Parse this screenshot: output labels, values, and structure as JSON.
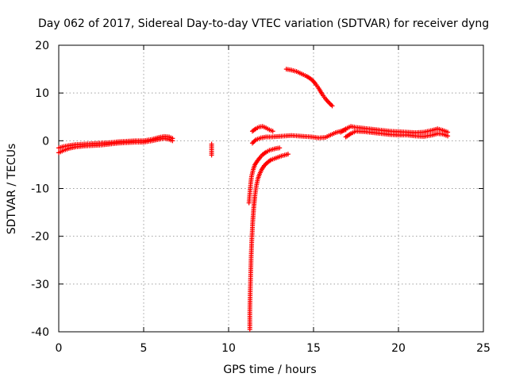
{
  "chart_data": {
    "type": "scatter",
    "title": "Day 062 of 2017, Sidereal Day-to-day VTEC variation (SDTVAR) for receiver dyng",
    "xlabel": "GPS time / hours",
    "ylabel": "SDTVAR / TECUs",
    "xlim": [
      0,
      25
    ],
    "ylim": [
      -40,
      20
    ],
    "xticks": [
      0,
      5,
      10,
      15,
      20,
      25
    ],
    "yticks": [
      -40,
      -30,
      -20,
      -10,
      0,
      10,
      20
    ],
    "grid": true,
    "marker": "+",
    "color": "#ff0000",
    "series": [
      {
        "name": "SDTVAR",
        "segments": [
          {
            "x": [
              0.0,
              0.3,
              0.6,
              1.0,
              1.5,
              2.0,
              2.5,
              3.0,
              3.5,
              4.0,
              4.5,
              5.0,
              5.5,
              5.9,
              6.2,
              6.5,
              6.7
            ],
            "y": [
              -2.5,
              -2.0,
              -1.6,
              -1.3,
              -1.1,
              -1.0,
              -0.9,
              -0.7,
              -0.5,
              -0.4,
              -0.3,
              -0.3,
              0.0,
              0.3,
              0.5,
              0.3,
              0.0
            ]
          },
          {
            "x": [
              0.0,
              0.3,
              0.6,
              1.0,
              1.5,
              2.0,
              2.5,
              3.0,
              3.5,
              4.0,
              4.5,
              5.0,
              5.5,
              5.9,
              6.2,
              6.5,
              6.7
            ],
            "y": [
              -1.5,
              -1.2,
              -1.0,
              -0.8,
              -0.7,
              -0.6,
              -0.5,
              -0.4,
              -0.2,
              -0.1,
              0.0,
              0.0,
              0.3,
              0.7,
              0.9,
              0.8,
              0.5
            ]
          },
          {
            "x": [
              9.0,
              9.0
            ],
            "y": [
              -0.7,
              -3.0
            ]
          },
          {
            "x": [
              11.25,
              11.25,
              11.27,
              11.3,
              11.33,
              11.37,
              11.42,
              11.48,
              11.55,
              11.63,
              11.72,
              11.82,
              11.95,
              12.1,
              12.3,
              12.5,
              12.8,
              13.1,
              13.5
            ],
            "y": [
              -39.5,
              -36.0,
              -32.0,
              -28.0,
              -24.0,
              -20.5,
              -17.0,
              -14.0,
              -11.5,
              -9.5,
              -8.0,
              -7.0,
              -6.0,
              -5.2,
              -4.5,
              -4.0,
              -3.6,
              -3.2,
              -2.8
            ]
          },
          {
            "x": [
              11.2,
              11.25,
              11.3,
              11.35,
              11.45,
              11.55,
              11.7,
              11.85,
              12.0,
              12.2,
              12.4,
              12.6,
              12.8,
              13.0
            ],
            "y": [
              -13.0,
              -11.0,
              -9.0,
              -7.5,
              -6.0,
              -5.0,
              -4.2,
              -3.5,
              -2.9,
              -2.4,
              -2.0,
              -1.8,
              -1.6,
              -1.5
            ]
          },
          {
            "x": [
              11.4,
              11.6,
              11.9,
              12.2,
              12.5,
              12.9,
              13.3,
              13.7,
              14.1,
              14.5,
              14.9,
              15.3,
              15.7,
              16.0,
              16.3,
              16.6,
              16.9
            ],
            "y": [
              -0.5,
              0.2,
              0.6,
              0.8,
              0.8,
              0.9,
              1.0,
              1.1,
              1.0,
              0.9,
              0.8,
              0.6,
              0.7,
              1.2,
              1.7,
              2.0,
              2.3
            ]
          },
          {
            "x": [
              11.4,
              11.6,
              11.8,
              12.0,
              12.2,
              12.4,
              12.6
            ],
            "y": [
              2.0,
              2.5,
              2.9,
              3.0,
              2.7,
              2.3,
              2.0
            ]
          },
          {
            "x": [
              13.4,
              13.7,
              14.0,
              14.3,
              14.6,
              14.9,
              15.1,
              15.3,
              15.5,
              15.7,
              15.9,
              16.1
            ],
            "y": [
              15.0,
              14.8,
              14.5,
              14.0,
              13.5,
              12.8,
              12.0,
              11.0,
              9.8,
              8.8,
              8.0,
              7.3
            ]
          },
          {
            "x": [
              16.6,
              16.9,
              17.2,
              17.5,
              18.0,
              18.5,
              19.0,
              19.5,
              20.0,
              20.5,
              21.0,
              21.5,
              22.0,
              22.3,
              22.6,
              22.9
            ],
            "y": [
              1.8,
              2.5,
              3.0,
              2.8,
              2.6,
              2.4,
              2.2,
              2.0,
              1.9,
              1.8,
              1.7,
              1.8,
              2.2,
              2.5,
              2.2,
              1.8
            ]
          },
          {
            "x": [
              16.9,
              17.2,
              17.5,
              18.0,
              18.5,
              19.0,
              19.5,
              20.0,
              20.5,
              21.0,
              21.5,
              22.0,
              22.3,
              22.6,
              22.9
            ],
            "y": [
              0.8,
              1.5,
              2.0,
              1.9,
              1.7,
              1.5,
              1.3,
              1.2,
              1.2,
              1.0,
              0.9,
              1.2,
              1.5,
              1.4,
              1.0
            ]
          }
        ]
      }
    ]
  }
}
